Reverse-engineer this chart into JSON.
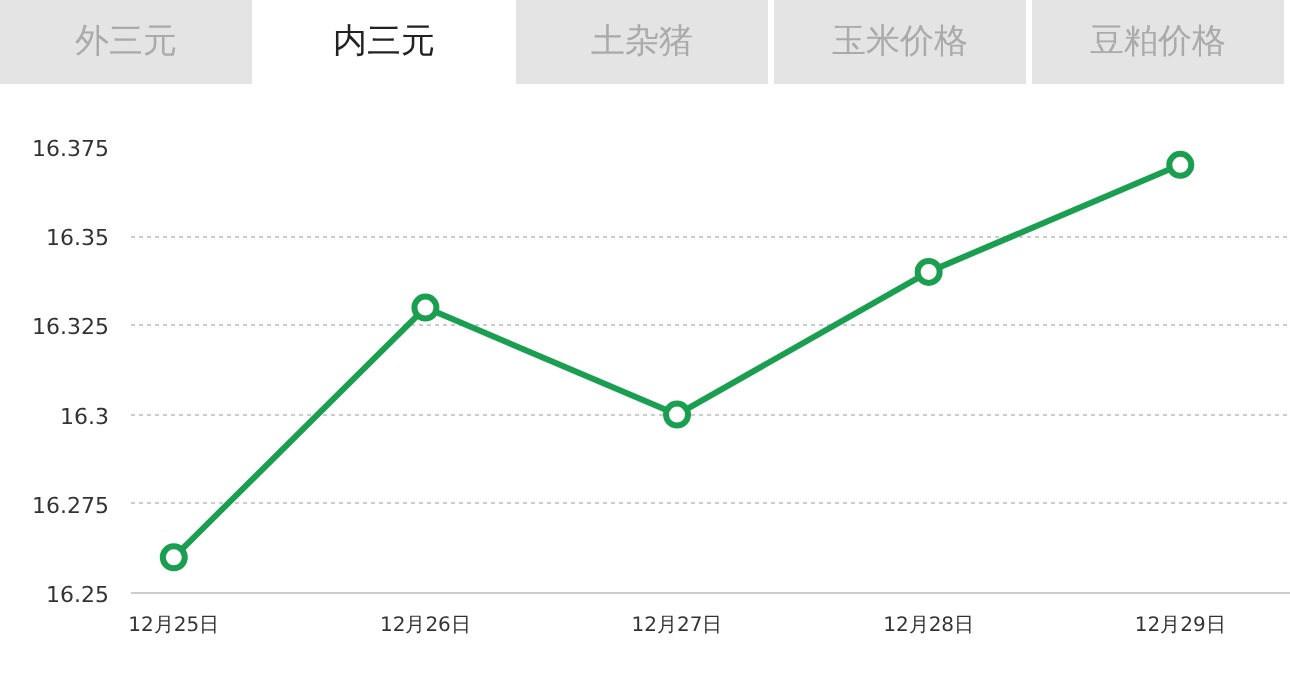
{
  "chart_data": {
    "type": "line",
    "title": "内三元",
    "annotations": [
      "外三元",
      "土杂猪",
      "玉米价格",
      "豆粕价格"
    ],
    "categories": [
      "12月25日",
      "12月26日",
      "12月27日",
      "12月28日",
      "12月29日"
    ],
    "series": [
      {
        "color": "#1a9e50",
        "values": [
          16.26,
          16.33,
          16.3,
          16.34,
          16.37
        ]
      }
    ],
    "ylim": [
      16.25,
      16.375
    ],
    "yticks": [
      16.25,
      16.275,
      16.3,
      16.325,
      16.35,
      16.375
    ],
    "grid": "y",
    "marker": "circle",
    "line_style": "solid"
  }
}
